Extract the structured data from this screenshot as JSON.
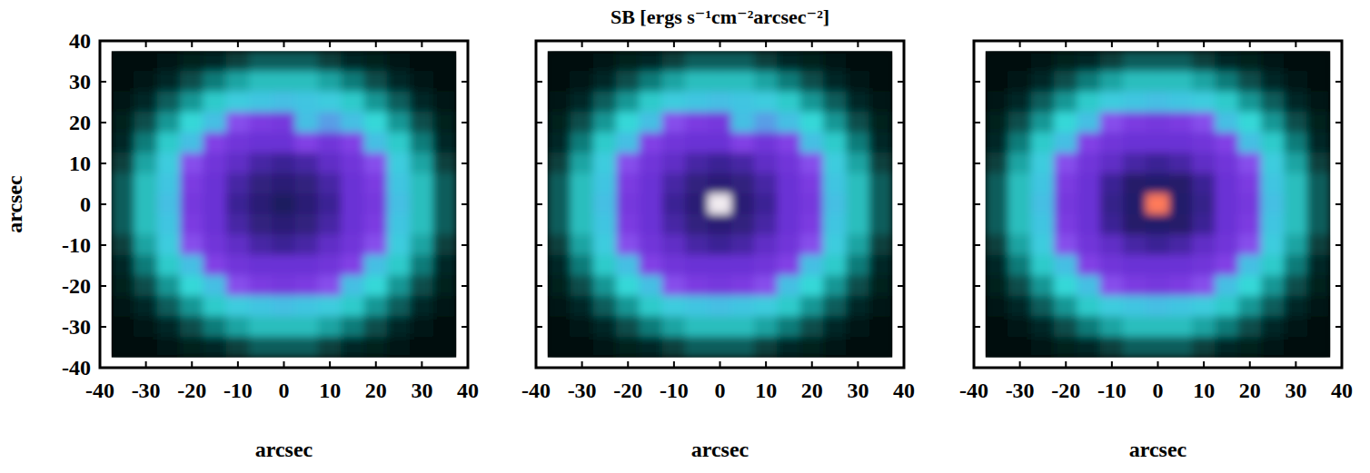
{
  "chart_data": [
    {
      "type": "heatmap",
      "x_label": "arcsec",
      "y_label": "arcsec",
      "xlim": [
        -40,
        40
      ],
      "ylim": [
        -40,
        40
      ],
      "xticks": [
        -40,
        -30,
        -20,
        -10,
        0,
        10,
        20,
        30,
        40
      ],
      "yticks": [
        -40,
        -30,
        -20,
        -10,
        0,
        10,
        20,
        30,
        40
      ],
      "zlim": [
        0,
        6
      ],
      "x": [
        -35,
        -30,
        -25,
        -20,
        -15,
        -10,
        -5,
        0,
        5,
        10,
        15,
        20,
        25,
        30,
        35
      ],
      "y": [
        35,
        30,
        25,
        20,
        15,
        10,
        5,
        0,
        -5,
        -10,
        -15,
        -20,
        -25,
        -30,
        -35
      ],
      "z": [
        [
          0.1,
          0.2,
          0.3,
          0.4,
          0.5,
          0.7,
          0.9,
          0.9,
          0.9,
          0.7,
          0.5,
          0.4,
          0.3,
          0.2,
          0.1
        ],
        [
          0.2,
          0.3,
          0.5,
          0.8,
          1.1,
          1.4,
          1.6,
          1.6,
          1.6,
          1.4,
          1.1,
          0.8,
          0.5,
          0.3,
          0.2
        ],
        [
          0.3,
          0.5,
          0.9,
          1.3,
          1.7,
          2.0,
          2.1,
          2.2,
          2.1,
          2.0,
          1.7,
          1.3,
          0.9,
          0.5,
          0.3
        ],
        [
          0.4,
          0.8,
          1.3,
          1.8,
          2.2,
          2.5,
          2.8,
          2.9,
          2.2,
          2.3,
          2.2,
          1.8,
          1.3,
          0.8,
          0.4
        ],
        [
          0.5,
          1.1,
          1.7,
          2.2,
          2.7,
          3.0,
          3.1,
          3.1,
          2.7,
          3.0,
          2.7,
          2.2,
          1.7,
          1.1,
          0.5
        ],
        [
          0.7,
          1.4,
          2.0,
          2.5,
          3.0,
          3.2,
          3.4,
          3.5,
          3.4,
          3.2,
          3.0,
          2.5,
          2.0,
          1.4,
          0.7
        ],
        [
          0.9,
          1.6,
          2.1,
          2.8,
          3.1,
          3.4,
          3.7,
          3.8,
          3.7,
          3.4,
          3.1,
          2.8,
          2.1,
          1.6,
          0.9
        ],
        [
          0.9,
          1.6,
          2.2,
          2.9,
          3.1,
          3.5,
          3.8,
          4.0,
          3.8,
          3.5,
          3.1,
          2.9,
          2.2,
          1.6,
          0.9
        ],
        [
          0.9,
          1.6,
          2.1,
          2.8,
          3.1,
          3.4,
          3.7,
          3.8,
          3.7,
          3.4,
          3.1,
          2.8,
          2.1,
          1.6,
          0.9
        ],
        [
          0.7,
          1.4,
          2.0,
          2.5,
          3.0,
          3.2,
          3.4,
          3.5,
          3.4,
          3.2,
          3.0,
          2.5,
          2.0,
          1.4,
          0.7
        ],
        [
          0.5,
          1.1,
          1.7,
          2.2,
          2.7,
          3.0,
          3.1,
          3.1,
          3.1,
          3.0,
          2.7,
          2.2,
          1.7,
          1.1,
          0.5
        ],
        [
          0.4,
          0.8,
          1.3,
          1.8,
          2.2,
          2.5,
          2.8,
          2.9,
          2.8,
          2.5,
          2.2,
          1.8,
          1.3,
          0.8,
          0.4
        ],
        [
          0.3,
          0.5,
          0.9,
          1.3,
          1.7,
          2.0,
          2.1,
          2.2,
          2.1,
          2.0,
          1.7,
          1.3,
          0.9,
          0.5,
          0.3
        ],
        [
          0.2,
          0.3,
          0.5,
          0.8,
          1.1,
          1.4,
          1.6,
          1.6,
          1.6,
          1.4,
          1.1,
          0.8,
          0.5,
          0.3,
          0.2
        ],
        [
          0.1,
          0.2,
          0.3,
          0.4,
          0.5,
          0.7,
          0.9,
          0.9,
          0.9,
          0.7,
          0.5,
          0.4,
          0.3,
          0.2,
          0.1
        ]
      ]
    },
    {
      "type": "heatmap",
      "title": "SB [ergs s⁻¹cm⁻²arcsec⁻²]",
      "x_label": "arcsec",
      "tick_labels": "x",
      "xlim": [
        -40,
        40
      ],
      "ylim": [
        -40,
        40
      ],
      "xticks": [
        -40,
        -30,
        -20,
        -10,
        0,
        10,
        20,
        30,
        40
      ],
      "yticks": [
        -40,
        -30,
        -20,
        -10,
        0,
        10,
        20,
        30,
        40
      ],
      "zlim": [
        0,
        6
      ],
      "x": [
        -35,
        -30,
        -25,
        -20,
        -15,
        -10,
        -5,
        0,
        5,
        10,
        15,
        20,
        25,
        30,
        35
      ],
      "y": [
        35,
        30,
        25,
        20,
        15,
        10,
        5,
        0,
        -5,
        -10,
        -15,
        -20,
        -25,
        -30,
        -35
      ],
      "z": [
        [
          0.1,
          0.2,
          0.3,
          0.4,
          0.5,
          0.7,
          0.9,
          0.9,
          0.9,
          0.7,
          0.5,
          0.4,
          0.3,
          0.2,
          0.1
        ],
        [
          0.2,
          0.3,
          0.5,
          0.8,
          1.1,
          1.4,
          1.6,
          1.6,
          1.6,
          1.4,
          1.1,
          0.8,
          0.5,
          0.3,
          0.2
        ],
        [
          0.3,
          0.5,
          0.9,
          1.3,
          1.7,
          2.0,
          2.1,
          2.2,
          2.1,
          2.0,
          1.7,
          1.3,
          0.9,
          0.5,
          0.3
        ],
        [
          0.4,
          0.8,
          1.3,
          1.8,
          2.2,
          2.5,
          2.8,
          2.9,
          2.2,
          2.3,
          2.2,
          1.8,
          1.3,
          0.8,
          0.4
        ],
        [
          0.5,
          1.1,
          1.7,
          2.2,
          2.7,
          3.0,
          3.1,
          3.1,
          2.7,
          3.0,
          2.7,
          2.2,
          1.7,
          1.1,
          0.5
        ],
        [
          0.7,
          1.4,
          2.0,
          2.5,
          3.0,
          3.2,
          3.4,
          3.5,
          3.4,
          3.2,
          3.0,
          2.5,
          2.0,
          1.4,
          0.7
        ],
        [
          0.9,
          1.6,
          2.1,
          2.8,
          3.1,
          3.4,
          3.7,
          3.8,
          3.7,
          3.4,
          3.1,
          2.8,
          2.1,
          1.6,
          0.9
        ],
        [
          0.9,
          1.6,
          2.2,
          2.9,
          3.1,
          3.5,
          3.8,
          5.5,
          3.8,
          3.5,
          3.1,
          2.9,
          2.2,
          1.6,
          0.9
        ],
        [
          0.9,
          1.6,
          2.1,
          2.8,
          3.1,
          3.4,
          3.7,
          3.8,
          3.7,
          3.4,
          3.1,
          2.8,
          2.1,
          1.6,
          0.9
        ],
        [
          0.7,
          1.4,
          2.0,
          2.5,
          3.0,
          3.2,
          3.4,
          3.5,
          3.4,
          3.2,
          3.0,
          2.5,
          2.0,
          1.4,
          0.7
        ],
        [
          0.5,
          1.1,
          1.7,
          2.2,
          2.7,
          3.0,
          3.1,
          3.1,
          3.1,
          3.0,
          2.7,
          2.2,
          1.7,
          1.1,
          0.5
        ],
        [
          0.4,
          0.8,
          1.3,
          1.8,
          2.2,
          2.5,
          2.8,
          2.9,
          2.8,
          2.5,
          2.2,
          1.8,
          1.3,
          0.8,
          0.4
        ],
        [
          0.3,
          0.5,
          0.9,
          1.3,
          1.7,
          2.0,
          2.1,
          2.2,
          2.1,
          2.0,
          1.7,
          1.3,
          0.9,
          0.5,
          0.3
        ],
        [
          0.2,
          0.3,
          0.5,
          0.8,
          1.1,
          1.4,
          1.6,
          1.6,
          1.6,
          1.4,
          1.1,
          0.8,
          0.5,
          0.3,
          0.2
        ],
        [
          0.1,
          0.2,
          0.3,
          0.4,
          0.5,
          0.7,
          0.9,
          0.9,
          0.9,
          0.7,
          0.5,
          0.4,
          0.3,
          0.2,
          0.1
        ]
      ]
    },
    {
      "type": "heatmap",
      "x_label": "arcsec",
      "tick_labels": "x",
      "xlim": [
        -40,
        40
      ],
      "ylim": [
        -40,
        40
      ],
      "xticks": [
        -40,
        -30,
        -20,
        -10,
        0,
        10,
        20,
        30,
        40
      ],
      "yticks": [
        -40,
        -30,
        -20,
        -10,
        0,
        10,
        20,
        30,
        40
      ],
      "zlim": [
        0,
        6
      ],
      "x": [
        -35,
        -30,
        -25,
        -20,
        -15,
        -10,
        -5,
        0,
        5,
        10,
        15,
        20,
        25,
        30,
        35
      ],
      "y": [
        35,
        30,
        25,
        20,
        15,
        10,
        5,
        0,
        -5,
        -10,
        -15,
        -20,
        -25,
        -30,
        -35
      ],
      "z": [
        [
          0.1,
          0.2,
          0.3,
          0.4,
          0.5,
          0.7,
          0.9,
          0.9,
          0.9,
          0.7,
          0.5,
          0.4,
          0.3,
          0.2,
          0.1
        ],
        [
          0.2,
          0.3,
          0.5,
          0.8,
          1.1,
          1.4,
          1.6,
          1.6,
          1.6,
          1.4,
          1.1,
          0.8,
          0.5,
          0.3,
          0.2
        ],
        [
          0.3,
          0.5,
          0.9,
          1.3,
          1.7,
          2.0,
          2.1,
          2.2,
          2.1,
          2.0,
          1.7,
          1.3,
          0.9,
          0.5,
          0.3
        ],
        [
          0.4,
          0.8,
          1.3,
          1.8,
          2.2,
          2.5,
          2.8,
          2.9,
          2.8,
          2.5,
          2.2,
          1.8,
          1.3,
          0.8,
          0.4
        ],
        [
          0.5,
          1.1,
          1.7,
          2.2,
          2.7,
          3.0,
          3.1,
          3.1,
          3.1,
          3.0,
          2.7,
          2.2,
          1.7,
          1.1,
          0.5
        ],
        [
          0.7,
          1.4,
          2.0,
          2.5,
          3.0,
          3.2,
          3.4,
          3.5,
          3.4,
          3.2,
          3.0,
          2.5,
          2.0,
          1.4,
          0.7
        ],
        [
          0.9,
          1.6,
          2.1,
          2.8,
          3.1,
          3.5,
          3.9,
          4.3,
          3.9,
          3.5,
          3.1,
          2.8,
          2.1,
          1.6,
          0.9
        ],
        [
          0.9,
          1.6,
          2.2,
          2.9,
          3.1,
          3.6,
          4.3,
          6.0,
          4.3,
          3.6,
          3.1,
          2.9,
          2.2,
          1.6,
          0.9
        ],
        [
          0.9,
          1.6,
          2.1,
          2.8,
          3.1,
          3.5,
          3.9,
          4.3,
          3.9,
          3.5,
          3.1,
          2.8,
          2.1,
          1.6,
          0.9
        ],
        [
          0.7,
          1.4,
          2.0,
          2.5,
          3.0,
          3.2,
          3.4,
          3.5,
          3.4,
          3.2,
          3.0,
          2.5,
          2.0,
          1.4,
          0.7
        ],
        [
          0.5,
          1.1,
          1.7,
          2.2,
          2.7,
          3.0,
          3.1,
          3.1,
          3.1,
          3.0,
          2.7,
          2.2,
          1.7,
          1.1,
          0.5
        ],
        [
          0.4,
          0.8,
          1.3,
          1.8,
          2.2,
          2.5,
          2.8,
          2.9,
          2.8,
          2.5,
          2.2,
          1.8,
          1.3,
          0.8,
          0.4
        ],
        [
          0.3,
          0.5,
          0.9,
          1.3,
          1.7,
          2.0,
          2.1,
          2.2,
          2.1,
          2.0,
          1.7,
          1.3,
          0.9,
          0.5,
          0.3
        ],
        [
          0.2,
          0.3,
          0.5,
          0.8,
          1.1,
          1.4,
          1.6,
          1.6,
          1.6,
          1.4,
          1.1,
          0.8,
          0.5,
          0.3,
          0.2
        ],
        [
          0.1,
          0.2,
          0.3,
          0.4,
          0.5,
          0.7,
          0.9,
          0.9,
          0.9,
          0.7,
          0.5,
          0.4,
          0.3,
          0.2,
          0.1
        ]
      ]
    }
  ]
}
